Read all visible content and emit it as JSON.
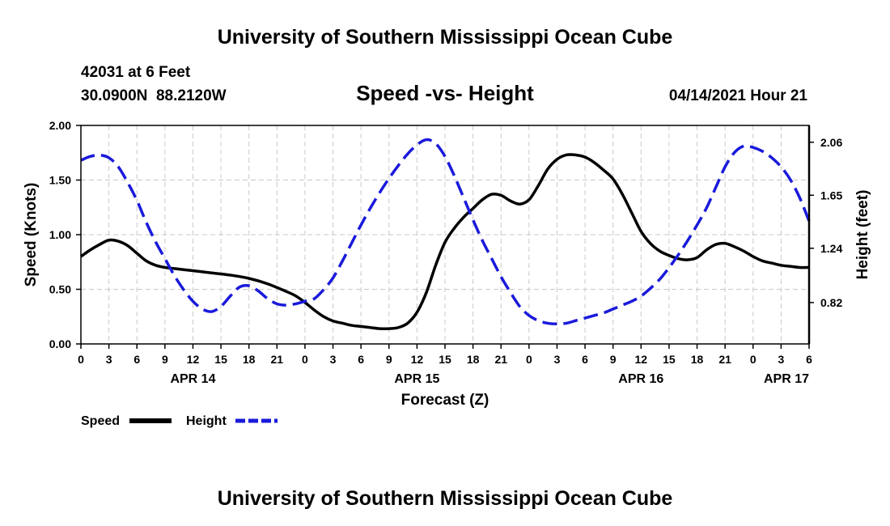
{
  "header": {
    "title": "University of Southern Mississippi Ocean Cube",
    "station_line": "42031 at 6 Feet",
    "coords_line": "30.0900N  88.2120W",
    "chart_subtitle": "Speed -vs- Height",
    "timestamp": "04/14/2021 Hour 21"
  },
  "footer": {
    "title": "University of Southern Mississippi Ocean Cube"
  },
  "chart_data": {
    "type": "line",
    "title": "Speed -vs- Height",
    "xlabel": "Forecast (Z)",
    "ylabel_left": "Speed (Knots)",
    "ylabel_right": "Height (feet)",
    "x_range_hours": [
      0,
      78
    ],
    "x_ticks": [
      {
        "h": 0,
        "label": "0"
      },
      {
        "h": 3,
        "label": "3"
      },
      {
        "h": 6,
        "label": "6"
      },
      {
        "h": 9,
        "label": "9"
      },
      {
        "h": 12,
        "label": "12"
      },
      {
        "h": 15,
        "label": "15"
      },
      {
        "h": 18,
        "label": "18"
      },
      {
        "h": 21,
        "label": "21"
      },
      {
        "h": 24,
        "label": "0"
      },
      {
        "h": 27,
        "label": "3"
      },
      {
        "h": 30,
        "label": "6"
      },
      {
        "h": 33,
        "label": "9"
      },
      {
        "h": 36,
        "label": "12"
      },
      {
        "h": 39,
        "label": "15"
      },
      {
        "h": 42,
        "label": "18"
      },
      {
        "h": 45,
        "label": "21"
      },
      {
        "h": 48,
        "label": "0"
      },
      {
        "h": 51,
        "label": "3"
      },
      {
        "h": 54,
        "label": "6"
      },
      {
        "h": 57,
        "label": "9"
      },
      {
        "h": 60,
        "label": "12"
      },
      {
        "h": 63,
        "label": "15"
      },
      {
        "h": 66,
        "label": "18"
      },
      {
        "h": 69,
        "label": "21"
      },
      {
        "h": 72,
        "label": "0"
      },
      {
        "h": 75,
        "label": "3"
      },
      {
        "h": 78,
        "label": "6"
      }
    ],
    "date_labels": [
      {
        "h": 12,
        "label": "APR 14",
        "anchor": "middle"
      },
      {
        "h": 36,
        "label": "APR 15",
        "anchor": "middle"
      },
      {
        "h": 60,
        "label": "APR 16",
        "anchor": "middle"
      },
      {
        "h": 78,
        "label": "APR 17",
        "anchor": "end"
      }
    ],
    "y_left": {
      "min": 0,
      "max": 2.0,
      "ticks": [
        "0.00",
        "0.50",
        "1.00",
        "1.50",
        "2.00"
      ]
    },
    "y_right": {
      "min": 0.5,
      "max": 2.19,
      "ticks": [
        "0.82",
        "1.24",
        "1.65",
        "2.06"
      ]
    },
    "grid": true,
    "series": [
      {
        "name": "Speed",
        "axis": "left",
        "color": "#000000",
        "dash": "solid",
        "x": [
          0,
          1,
          2,
          3,
          4,
          5,
          6,
          7,
          8,
          9,
          10,
          12,
          14,
          16,
          18,
          20,
          22,
          23,
          24,
          25,
          26,
          27,
          28,
          29,
          30,
          31,
          32,
          33,
          34,
          35,
          36,
          37,
          38,
          39,
          40,
          41,
          42,
          43,
          44,
          45,
          46,
          47,
          48,
          49,
          50,
          51,
          52,
          53,
          54,
          55,
          56,
          57,
          58,
          59,
          60,
          61,
          62,
          63,
          64,
          65,
          66,
          67,
          68,
          69,
          70,
          71,
          72,
          73,
          74,
          75,
          76,
          77,
          78
        ],
        "values": [
          0.8,
          0.86,
          0.91,
          0.95,
          0.94,
          0.9,
          0.83,
          0.76,
          0.72,
          0.7,
          0.69,
          0.67,
          0.65,
          0.63,
          0.6,
          0.55,
          0.48,
          0.44,
          0.38,
          0.31,
          0.25,
          0.21,
          0.19,
          0.17,
          0.16,
          0.15,
          0.14,
          0.14,
          0.15,
          0.19,
          0.29,
          0.47,
          0.72,
          0.93,
          1.06,
          1.16,
          1.24,
          1.32,
          1.37,
          1.36,
          1.31,
          1.28,
          1.32,
          1.45,
          1.6,
          1.69,
          1.73,
          1.73,
          1.71,
          1.66,
          1.59,
          1.51,
          1.37,
          1.2,
          1.03,
          0.92,
          0.85,
          0.81,
          0.78,
          0.77,
          0.79,
          0.86,
          0.91,
          0.92,
          0.89,
          0.85,
          0.8,
          0.76,
          0.74,
          0.72,
          0.71,
          0.7,
          0.7
        ]
      },
      {
        "name": "Height",
        "axis": "right",
        "color": "#1a1adb",
        "dash": "dashed",
        "x": [
          0,
          1,
          2,
          3,
          4,
          5,
          6,
          7,
          8,
          9,
          10,
          11,
          12,
          13,
          14,
          15,
          16,
          17,
          18,
          19,
          20,
          21,
          22,
          23,
          24,
          25,
          26,
          27,
          28,
          29,
          30,
          31,
          32,
          33,
          34,
          35,
          36,
          37,
          38,
          39,
          40,
          41,
          42,
          43,
          44,
          45,
          46,
          47,
          48,
          49,
          50,
          51,
          52,
          53,
          54,
          55,
          56,
          57,
          58,
          59,
          60,
          61,
          62,
          63,
          64,
          65,
          66,
          67,
          68,
          69,
          70,
          71,
          72,
          73,
          74,
          75,
          76,
          77,
          78
        ],
        "values": [
          1.92,
          1.95,
          1.96,
          1.94,
          1.87,
          1.75,
          1.61,
          1.44,
          1.29,
          1.16,
          1.03,
          0.92,
          0.83,
          0.77,
          0.75,
          0.79,
          0.87,
          0.94,
          0.95,
          0.91,
          0.85,
          0.81,
          0.8,
          0.81,
          0.83,
          0.85,
          0.92,
          1.01,
          1.14,
          1.28,
          1.42,
          1.55,
          1.67,
          1.78,
          1.88,
          1.97,
          2.04,
          2.08,
          2.05,
          1.95,
          1.8,
          1.63,
          1.46,
          1.3,
          1.16,
          1.02,
          0.9,
          0.79,
          0.72,
          0.68,
          0.66,
          0.655,
          0.66,
          0.68,
          0.7,
          0.72,
          0.74,
          0.77,
          0.8,
          0.83,
          0.87,
          0.93,
          1.0,
          1.09,
          1.19,
          1.3,
          1.42,
          1.55,
          1.71,
          1.87,
          1.98,
          2.03,
          2.02,
          1.99,
          1.94,
          1.87,
          1.77,
          1.63,
          1.45
        ]
      }
    ],
    "legend": [
      {
        "label": "Speed",
        "color": "#000000",
        "dash": "solid"
      },
      {
        "label": "Height",
        "color": "#1a1adb",
        "dash": "dashed"
      }
    ]
  }
}
